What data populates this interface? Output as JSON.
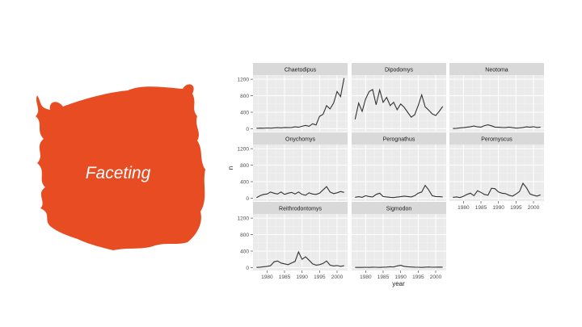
{
  "slide": {
    "title": "Faceting",
    "accent_color": "#E84C22"
  },
  "chart_data": {
    "type": "line",
    "layout": "facet_wrap",
    "ncol": 3,
    "xlabel": "year",
    "ylabel": "n",
    "x_ticks": [
      1980,
      1985,
      1990,
      1995,
      2000
    ],
    "y_ticks": [
      0,
      400,
      800,
      1200
    ],
    "xlim": [
      1976,
      2003
    ],
    "ylim": [
      -70,
      1300
    ],
    "grid": true,
    "line_color": "#333333",
    "panel_bg": "#EBEBEB",
    "strip_bg": "#D9D9D9",
    "x": [
      1977,
      1978,
      1979,
      1980,
      1981,
      1982,
      1983,
      1984,
      1985,
      1986,
      1987,
      1988,
      1989,
      1990,
      1991,
      1992,
      1993,
      1994,
      1995,
      1996,
      1997,
      1998,
      1999,
      2000,
      2001,
      2002
    ],
    "facets": [
      {
        "name": "Chaetodipus",
        "values": [
          10,
          15,
          12,
          18,
          15,
          20,
          25,
          20,
          30,
          25,
          30,
          45,
          35,
          60,
          80,
          60,
          120,
          90,
          300,
          350,
          560,
          480,
          620,
          900,
          780,
          1230
        ]
      },
      {
        "name": "Dipodomys",
        "values": [
          230,
          620,
          420,
          720,
          900,
          950,
          580,
          940,
          640,
          760,
          560,
          640,
          460,
          600,
          520,
          400,
          280,
          340,
          560,
          820,
          530,
          450,
          360,
          320,
          420,
          540
        ]
      },
      {
        "name": "Neotoma",
        "values": [
          5,
          10,
          20,
          25,
          35,
          50,
          65,
          45,
          40,
          75,
          95,
          70,
          40,
          35,
          30,
          25,
          40,
          25,
          15,
          20,
          30,
          45,
          35,
          50,
          30,
          40
        ]
      },
      {
        "name": "Onychomys",
        "values": [
          10,
          60,
          90,
          100,
          150,
          120,
          100,
          150,
          90,
          120,
          140,
          100,
          150,
          90,
          70,
          130,
          100,
          90,
          120,
          200,
          280,
          150,
          110,
          130,
          160,
          140
        ]
      },
      {
        "name": "Perognathus",
        "values": [
          20,
          35,
          20,
          60,
          40,
          30,
          90,
          120,
          40,
          30,
          20,
          15,
          25,
          35,
          50,
          40,
          30,
          60,
          120,
          150,
          310,
          200,
          60,
          40,
          35,
          30
        ]
      },
      {
        "name": "Peromyscus",
        "values": [
          20,
          30,
          15,
          45,
          90,
          120,
          60,
          180,
          140,
          90,
          70,
          240,
          230,
          150,
          120,
          110,
          70,
          50,
          100,
          160,
          360,
          250,
          100,
          70,
          50,
          80
        ]
      },
      {
        "name": "Reithrodontomys",
        "values": [
          5,
          10,
          20,
          30,
          45,
          140,
          160,
          110,
          90,
          70,
          110,
          150,
          380,
          200,
          260,
          180,
          90,
          60,
          70,
          100,
          160,
          60,
          40,
          50,
          30,
          45
        ]
      },
      {
        "name": "Sigmodon",
        "values": [
          5,
          5,
          5,
          8,
          5,
          10,
          8,
          5,
          10,
          12,
          20,
          15,
          40,
          55,
          30,
          20,
          15,
          10,
          8,
          5,
          10,
          15,
          8,
          10,
          12,
          10
        ]
      }
    ]
  }
}
